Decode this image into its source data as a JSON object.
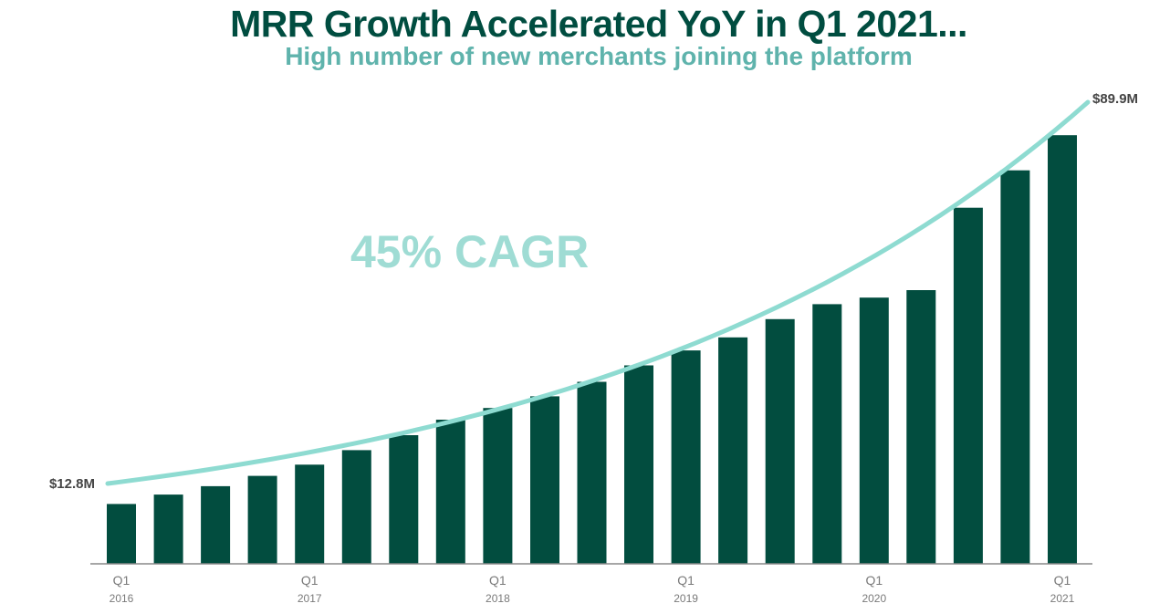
{
  "header": {
    "title": "MRR Growth Accelerated YoY in Q1 2021...",
    "subtitle": "High number of new merchants joining the platform"
  },
  "colors": {
    "bar": "#024d3f",
    "trend": "#8edbd1",
    "title": "#004d40",
    "subtitle": "#5fb3ac",
    "axis_text": "#7a7a7a",
    "value_label": "#444444"
  },
  "chart_data": {
    "type": "bar",
    "categories": [
      "Q1 2016",
      "Q2 2016",
      "Q3 2016",
      "Q4 2016",
      "Q1 2017",
      "Q2 2017",
      "Q3 2017",
      "Q4 2017",
      "Q1 2018",
      "Q2 2018",
      "Q3 2018",
      "Q4 2018",
      "Q1 2019",
      "Q2 2019",
      "Q3 2019",
      "Q4 2019",
      "Q1 2020",
      "Q2 2020",
      "Q3 2020",
      "Q4 2020",
      "Q1 2021"
    ],
    "values": [
      12.8,
      14.8,
      16.6,
      18.8,
      21.2,
      24.3,
      27.5,
      30.8,
      33.3,
      35.8,
      38.9,
      42.4,
      45.6,
      48.4,
      52.3,
      55.5,
      56.9,
      58.5,
      76.1,
      84.1,
      91.6
    ],
    "ylim": [
      0,
      101
    ],
    "x_tick_labels": [
      {
        "quarter": "Q1",
        "year": "2016"
      },
      {
        "quarter": "Q1",
        "year": "2017"
      },
      {
        "quarter": "Q1",
        "year": "2018"
      },
      {
        "quarter": "Q1",
        "year": "2019"
      },
      {
        "quarter": "Q1",
        "year": "2020"
      },
      {
        "quarter": "Q1",
        "year": "2021"
      }
    ],
    "annotations": {
      "start_label": "$12.8M",
      "end_label": "$89.9M",
      "cagr_label": "45% CAGR"
    },
    "trend_line": {
      "start_value": 12.8,
      "end_value": 89.9,
      "growth": "45% CAGR"
    },
    "grid": false,
    "legend": "none"
  }
}
